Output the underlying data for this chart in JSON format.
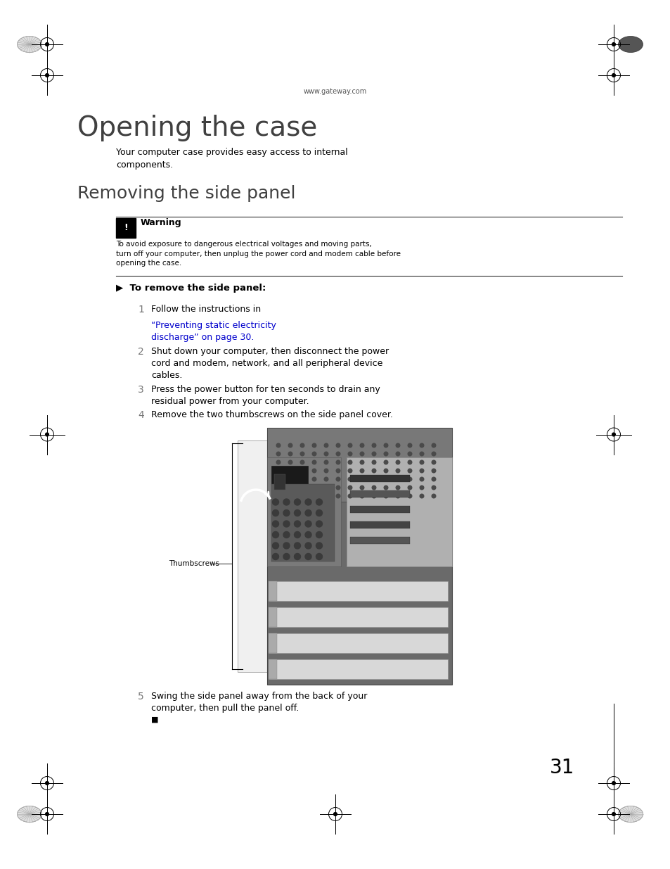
{
  "background_color": "#ffffff",
  "page_width": 9.54,
  "page_height": 12.35,
  "dpi": 100,
  "website": "www.gateway.com",
  "title": "Opening the case",
  "intro_text": "Your computer case provides easy access to internal\ncomponents.",
  "section_title": "Removing the side panel",
  "warning_title": "Warning",
  "warning_text": "To avoid exposure to dangerous electrical voltages and moving parts,\nturn off your computer, then unplug the power cord and modem cable before\nopening the case.",
  "procedure_title": "▶  To remove the side panel:",
  "step1_prefix": "Follow the instructions in ",
  "step1_link": "“Preventing static electricity\ndischarge” on page 30.",
  "step2": "Shut down your computer, then disconnect the power\ncord and modem, network, and all peripheral device\ncables.",
  "step3": "Press the power button for ten seconds to drain any\nresidual power from your computer.",
  "step4": "Remove the two thumbscrews on the side panel cover.",
  "step5": "Swing the side panel away from the back of your\ncomputer, then pull the panel off.",
  "thumbscrews_label": "Thumbscrews",
  "page_number": "31",
  "link_color": "#0000cc",
  "text_color": "#000000",
  "gray_text_color": "#555555",
  "step_num_color": "#777777",
  "title_color": "#404040",
  "section_color": "#404040"
}
